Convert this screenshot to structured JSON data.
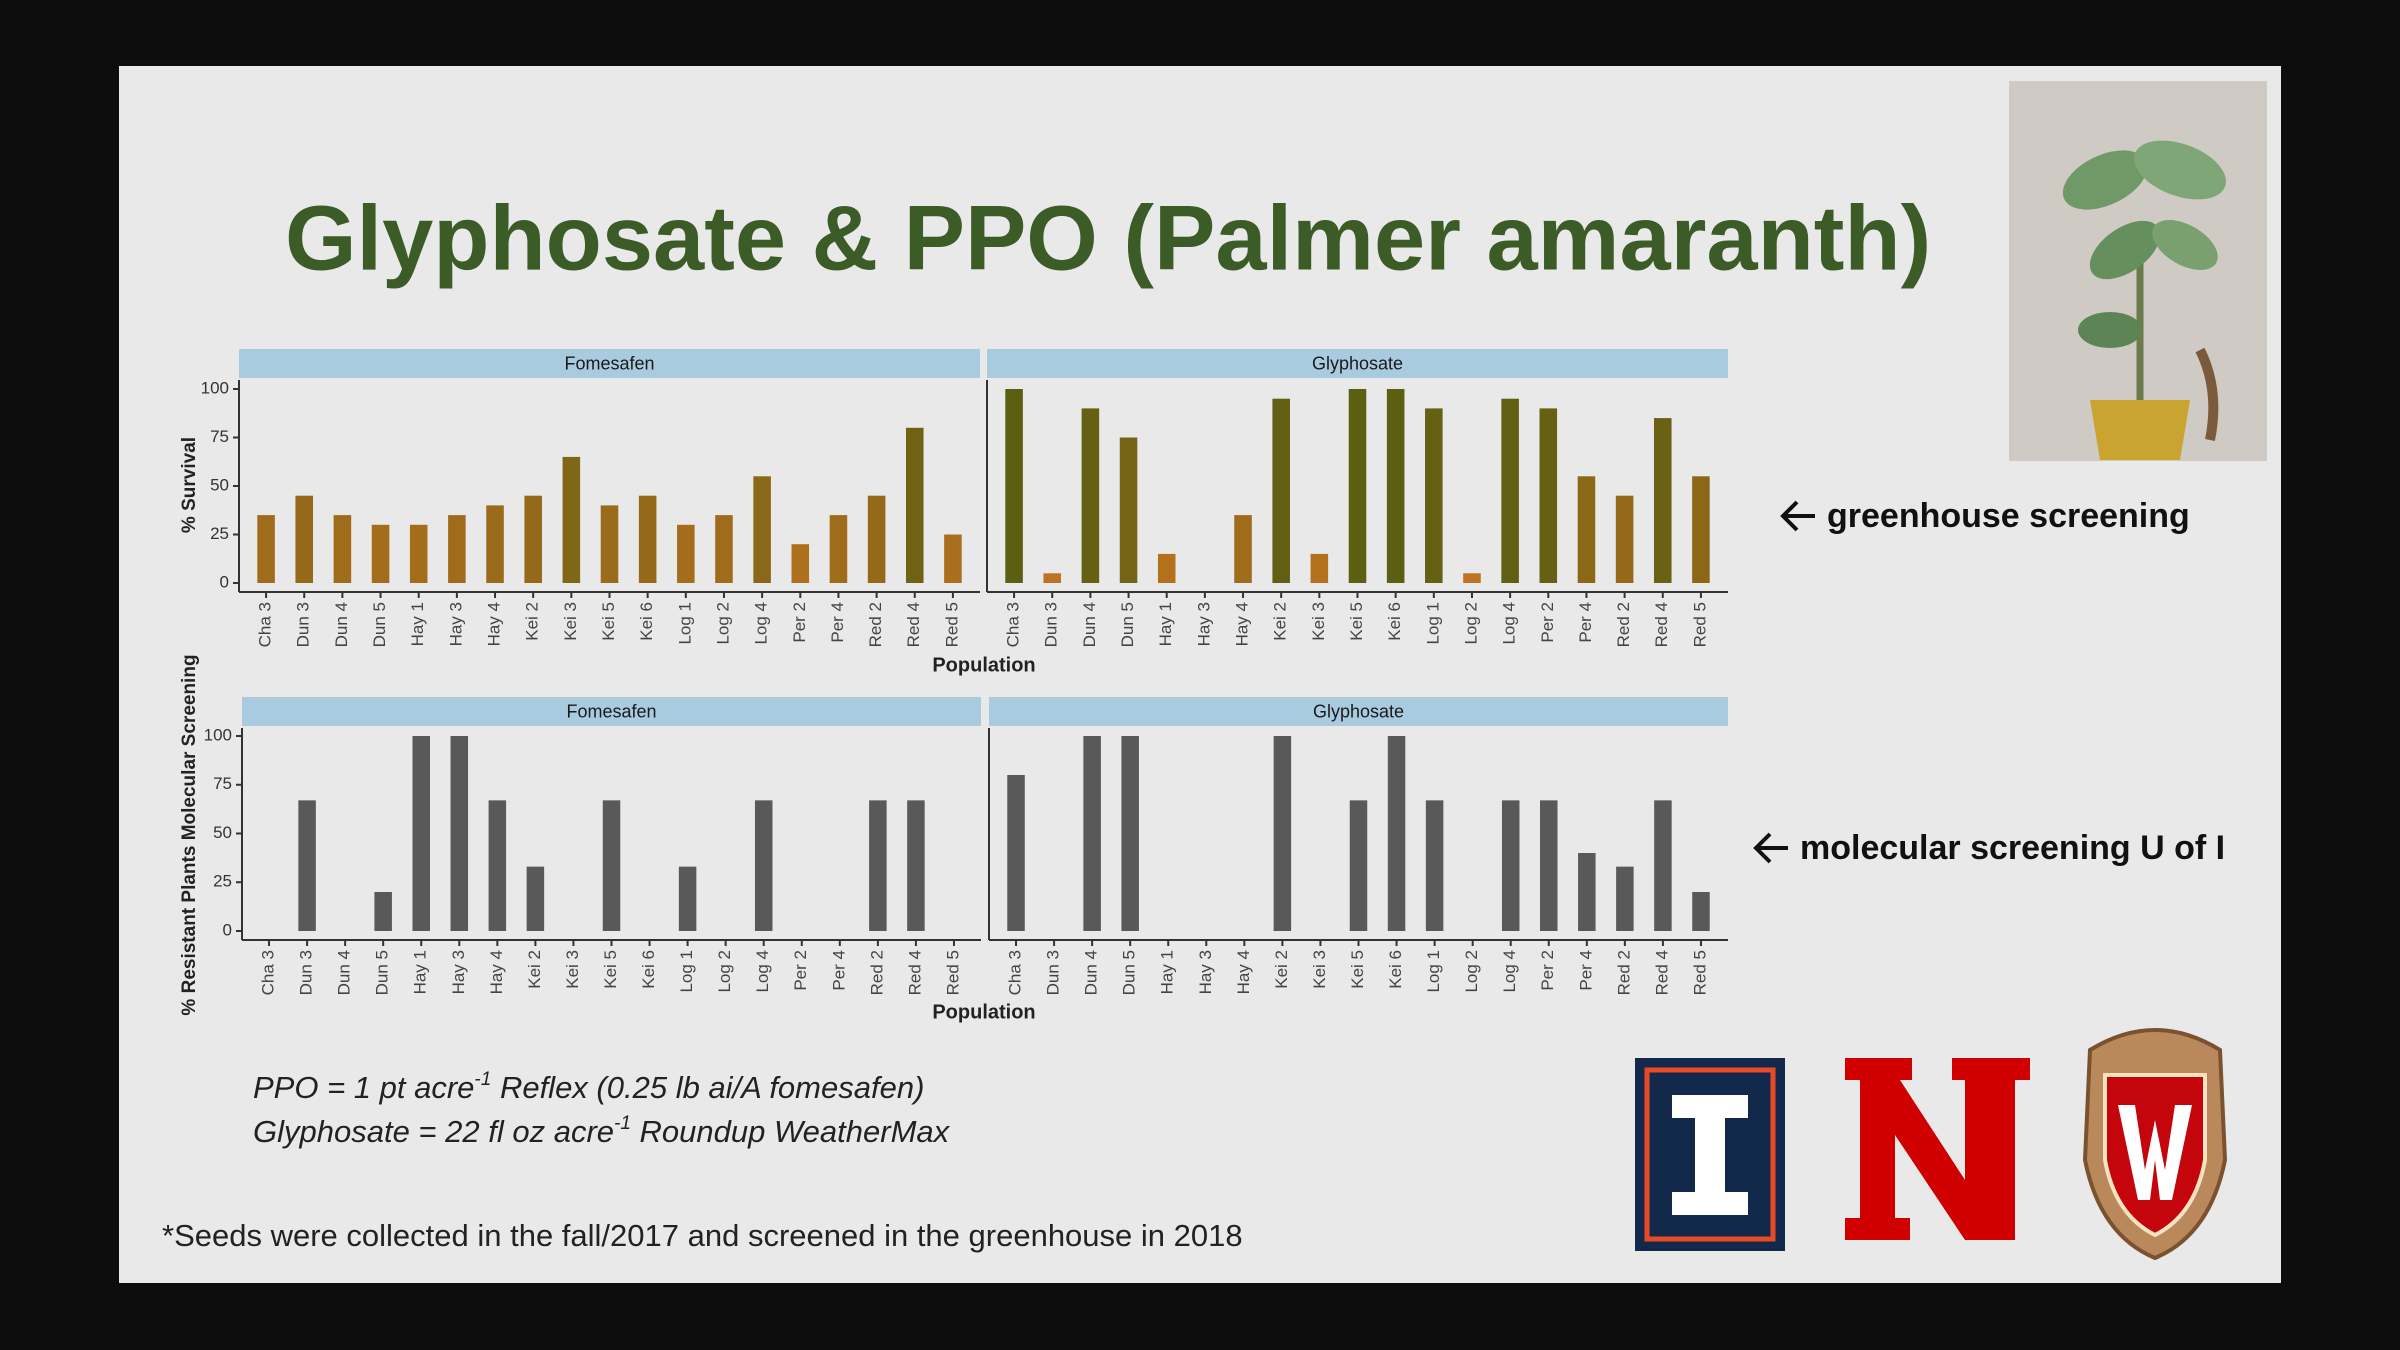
{
  "slide": {
    "title": "Glyphosate & PPO (Palmer amaranth)",
    "annotations": [
      "greenhouse screening",
      "molecular screening U of I"
    ],
    "notes": [
      {
        "before": "PPO = 1 pt acre",
        "sup": "-1",
        "after": " Reflex (0.25 lb ai/A fomesafen)"
      },
      {
        "before": "Glyphosate = 22 fl oz acre",
        "sup": "-1",
        "after": " Roundup WeatherMax"
      }
    ],
    "footnote": "*Seeds were collected in the fall/2017 and screened in the greenhouse in 2018"
  },
  "chart_data": [
    {
      "type": "bar",
      "facet": "Fomesafen",
      "y_label": "% Survival",
      "x_label": "Population",
      "categories": [
        "Cha 3",
        "Dun 3",
        "Dun 4",
        "Dun 5",
        "Hay 1",
        "Hay 3",
        "Hay 4",
        "Kei 2",
        "Kei 3",
        "Kei 5",
        "Kei 6",
        "Log 1",
        "Log 2",
        "Log 4",
        "Per 2",
        "Per 4",
        "Red 2",
        "Red 4",
        "Red 5"
      ],
      "values": [
        35,
        45,
        35,
        30,
        30,
        35,
        40,
        45,
        65,
        40,
        45,
        30,
        35,
        55,
        20,
        35,
        45,
        80,
        25
      ],
      "color_low": "#c27420",
      "color_high": "#5c5e12",
      "ylim": [
        0,
        100
      ],
      "yticks": [
        0,
        25,
        50,
        75,
        100
      ]
    },
    {
      "type": "bar",
      "facet": "Glyphosate",
      "categories": [
        "Cha 3",
        "Dun 3",
        "Dun 4",
        "Dun 5",
        "Hay 1",
        "Hay 3",
        "Hay 4",
        "Kei 2",
        "Kei 3",
        "Kei 5",
        "Kei 6",
        "Log 1",
        "Log 2",
        "Log 4",
        "Per 2",
        "Per 4",
        "Red 2",
        "Red 4",
        "Red 5"
      ],
      "values": [
        100,
        5,
        90,
        75,
        15,
        0,
        35,
        95,
        15,
        100,
        100,
        90,
        5,
        95,
        90,
        55,
        45,
        85,
        55
      ],
      "color_low": "#c27420",
      "color_high": "#5c5e12",
      "ylim": [
        0,
        100
      ]
    },
    {
      "type": "bar",
      "facet": "Fomesafen",
      "y_label": "% Resistant Plants Molecular Screening",
      "x_label": "Population",
      "categories": [
        "Cha 3",
        "Dun 3",
        "Dun 4",
        "Dun 5",
        "Hay 1",
        "Hay 3",
        "Hay 4",
        "Kei 2",
        "Kei 3",
        "Kei 5",
        "Kei 6",
        "Log 1",
        "Log 2",
        "Log 4",
        "Per 2",
        "Per 4",
        "Red 2",
        "Red 4",
        "Red 5"
      ],
      "values": [
        0,
        67,
        0,
        20,
        100,
        100,
        67,
        33,
        0,
        67,
        0,
        33,
        0,
        67,
        0,
        0,
        67,
        67,
        0
      ],
      "color": "#595959",
      "ylim": [
        0,
        100
      ],
      "yticks": [
        0,
        25,
        50,
        75,
        100
      ]
    },
    {
      "type": "bar",
      "facet": "Glyphosate",
      "categories": [
        "Cha 3",
        "Dun 3",
        "Dun 4",
        "Dun 5",
        "Hay 1",
        "Hay 3",
        "Hay 4",
        "Kei 2",
        "Kei 3",
        "Kei 5",
        "Kei 6",
        "Log 1",
        "Log 2",
        "Log 4",
        "Per 2",
        "Per 4",
        "Red 2",
        "Red 4",
        "Red 5"
      ],
      "values": [
        80,
        0,
        100,
        100,
        0,
        0,
        0,
        100,
        0,
        67,
        100,
        67,
        0,
        67,
        67,
        40,
        33,
        67,
        20
      ],
      "color": "#595959",
      "ylim": [
        0,
        100
      ]
    }
  ]
}
